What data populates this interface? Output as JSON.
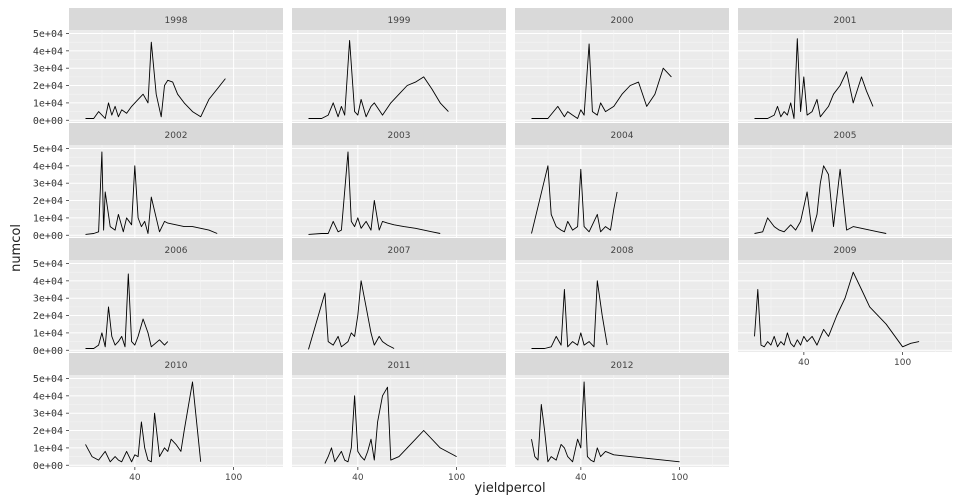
{
  "chart_data": {
    "type": "line",
    "xlabel": "yieldpercol",
    "ylabel": "numcol",
    "ylim": [
      -1000,
      52000
    ],
    "yticks": [
      0,
      10000,
      20000,
      30000,
      40000,
      50000
    ],
    "ytick_labels": [
      "0e+00",
      "1e+04",
      "2e+04",
      "3e+04",
      "4e+04",
      "5e+04"
    ],
    "xticks": [
      40,
      100
    ],
    "xtick_labels": [
      "40",
      "100"
    ],
    "grid": true,
    "facets": [
      {
        "strip": "1998",
        "x": [
          10,
          15,
          18,
          22,
          24,
          26,
          28,
          30,
          32,
          35,
          38,
          42,
          45,
          48,
          50,
          53,
          56,
          58,
          60,
          63,
          66,
          70,
          75,
          80,
          85,
          90,
          95
        ],
        "values": [
          1000,
          1000,
          5000,
          1000,
          10000,
          3000,
          8000,
          2000,
          6000,
          4000,
          8000,
          12000,
          15000,
          10000,
          45000,
          15000,
          2000,
          20000,
          23000,
          22000,
          15000,
          10000,
          5000,
          2000,
          12000,
          18000,
          24000
        ]
      },
      {
        "strip": "1999",
        "x": [
          10,
          18,
          22,
          25,
          28,
          30,
          32,
          35,
          38,
          40,
          42,
          45,
          48,
          50,
          55,
          60,
          65,
          70,
          75,
          80,
          85,
          90,
          95
        ],
        "values": [
          1000,
          1000,
          3000,
          10000,
          2000,
          8000,
          3000,
          46000,
          5000,
          3000,
          12000,
          2000,
          8000,
          10000,
          3000,
          10000,
          15000,
          20000,
          22000,
          25000,
          18000,
          10000,
          5000
        ]
      },
      {
        "strip": "2000",
        "x": [
          10,
          20,
          26,
          30,
          32,
          35,
          38,
          40,
          42,
          45,
          47,
          50,
          52,
          55,
          60,
          65,
          70,
          75,
          80,
          85,
          90,
          95
        ],
        "values": [
          1000,
          1000,
          8000,
          2000,
          5000,
          3000,
          1000,
          6000,
          3000,
          44000,
          5000,
          3000,
          10000,
          5000,
          8000,
          15000,
          20000,
          22000,
          8000,
          15000,
          30000,
          25000
        ]
      },
      {
        "strip": "2001",
        "x": [
          10,
          18,
          22,
          24,
          26,
          28,
          30,
          32,
          34,
          36,
          38,
          40,
          42,
          45,
          48,
          50,
          55,
          58,
          62,
          66,
          70,
          75,
          78,
          82
        ],
        "values": [
          1000,
          1000,
          3000,
          8000,
          2000,
          5000,
          3000,
          10000,
          1000,
          47000,
          5000,
          25000,
          3000,
          5000,
          12000,
          2000,
          8000,
          15000,
          20000,
          28000,
          10000,
          25000,
          17000,
          8000
        ]
      },
      {
        "strip": "2002",
        "x": [
          10,
          15,
          18,
          20,
          21,
          22,
          25,
          28,
          30,
          33,
          35,
          38,
          40,
          42,
          44,
          46,
          48,
          50,
          55,
          58,
          60,
          65,
          70,
          75,
          80,
          85,
          90
        ],
        "values": [
          500,
          1000,
          2000,
          48000,
          3000,
          25000,
          5000,
          3000,
          12000,
          2000,
          10000,
          6000,
          40000,
          10000,
          5000,
          8000,
          1000,
          22000,
          2000,
          8000,
          7000,
          6000,
          5000,
          5000,
          4000,
          3000,
          1000
        ]
      },
      {
        "strip": "2003",
        "x": [
          10,
          18,
          22,
          25,
          28,
          30,
          34,
          36,
          38,
          40,
          42,
          45,
          48,
          50,
          53,
          55,
          58,
          62,
          68,
          75,
          80,
          85,
          90
        ],
        "values": [
          500,
          1000,
          1000,
          8000,
          2000,
          3000,
          48000,
          8000,
          5000,
          10000,
          4000,
          8000,
          3000,
          20000,
          3000,
          8000,
          7000,
          6000,
          5000,
          4000,
          3000,
          2000,
          1000
        ]
      },
      {
        "strip": "2004",
        "x": [
          10,
          20,
          22,
          25,
          28,
          30,
          32,
          35,
          38,
          40,
          42,
          45,
          48,
          50,
          52,
          55,
          58,
          60,
          62
        ],
        "values": [
          1000,
          40000,
          12000,
          5000,
          3000,
          2000,
          8000,
          3000,
          5000,
          38000,
          5000,
          2000,
          8000,
          12000,
          2000,
          5000,
          3000,
          15000,
          25000
        ]
      },
      {
        "strip": "2005",
        "x": [
          10,
          15,
          18,
          22,
          25,
          28,
          32,
          35,
          38,
          42,
          45,
          48,
          50,
          52,
          55,
          58,
          62,
          66,
          70,
          75,
          80,
          85,
          90
        ],
        "values": [
          1000,
          2000,
          10000,
          5000,
          3000,
          2000,
          6000,
          3000,
          8000,
          25000,
          2000,
          12000,
          30000,
          40000,
          35000,
          5000,
          38000,
          3000,
          5000,
          4000,
          3000,
          2000,
          1000
        ]
      },
      {
        "strip": "2006",
        "x": [
          10,
          15,
          18,
          20,
          22,
          24,
          26,
          28,
          30,
          32,
          34,
          36,
          38,
          40,
          42,
          45,
          48,
          50,
          55,
          58,
          60
        ],
        "values": [
          1000,
          1000,
          3000,
          10000,
          2000,
          25000,
          8000,
          3000,
          5000,
          8000,
          2000,
          44000,
          5000,
          3000,
          8000,
          18000,
          10000,
          2000,
          6000,
          3000,
          5000
        ]
      },
      {
        "strip": "2007",
        "x": [
          10,
          20,
          22,
          25,
          28,
          30,
          34,
          36,
          38,
          40,
          42,
          45,
          48,
          50,
          53,
          55,
          58,
          62
        ],
        "values": [
          500,
          33000,
          5000,
          3000,
          8000,
          2000,
          5000,
          10000,
          8000,
          20000,
          40000,
          25000,
          10000,
          3000,
          8000,
          5000,
          3000,
          1000
        ]
      },
      {
        "strip": "2008",
        "x": [
          10,
          18,
          22,
          25,
          28,
          30,
          32,
          35,
          38,
          40,
          42,
          45,
          48,
          50,
          53,
          56
        ],
        "values": [
          1000,
          1000,
          2000,
          8000,
          3000,
          35000,
          2000,
          5000,
          3000,
          10000,
          3000,
          5000,
          2000,
          40000,
          20000,
          3000
        ]
      },
      {
        "strip": "2009",
        "x": [
          10,
          12,
          14,
          16,
          18,
          20,
          22,
          24,
          26,
          28,
          30,
          32,
          34,
          36,
          38,
          40,
          42,
          45,
          48,
          52,
          55,
          60,
          65,
          70,
          75,
          80,
          90,
          100,
          105,
          110
        ],
        "values": [
          8000,
          35000,
          3000,
          2000,
          5000,
          3000,
          8000,
          2000,
          5000,
          3000,
          10000,
          4000,
          2000,
          6000,
          3000,
          8000,
          5000,
          8000,
          3000,
          12000,
          8000,
          20000,
          30000,
          45000,
          35000,
          25000,
          15000,
          2000,
          4000,
          5000
        ]
      },
      {
        "strip": "2010",
        "x": [
          10,
          14,
          18,
          22,
          25,
          28,
          30,
          32,
          35,
          38,
          40,
          42,
          44,
          46,
          48,
          50,
          52,
          55,
          58,
          60,
          62,
          65,
          68,
          70,
          75,
          80
        ],
        "values": [
          12000,
          5000,
          3000,
          8000,
          2000,
          5000,
          3000,
          2000,
          8000,
          2000,
          6000,
          5000,
          25000,
          10000,
          3000,
          2000,
          30000,
          5000,
          10000,
          8000,
          15000,
          12000,
          8000,
          20000,
          48000,
          2000
        ]
      },
      {
        "strip": "2011",
        "x": [
          20,
          22,
          24,
          26,
          28,
          30,
          32,
          34,
          36,
          38,
          40,
          42,
          44,
          46,
          48,
          50,
          52,
          55,
          58,
          60,
          65,
          70,
          75,
          80,
          90,
          100
        ],
        "values": [
          1000,
          5000,
          10000,
          2000,
          5000,
          8000,
          3000,
          2000,
          10000,
          40000,
          8000,
          5000,
          3000,
          8000,
          15000,
          3000,
          25000,
          40000,
          45000,
          3000,
          5000,
          10000,
          15000,
          20000,
          10000,
          5000
        ]
      },
      {
        "strip": "2012",
        "x": [
          10,
          12,
          14,
          16,
          18,
          20,
          22,
          25,
          28,
          30,
          32,
          35,
          38,
          40,
          42,
          44,
          46,
          48,
          50,
          52,
          55,
          60,
          70,
          80,
          90,
          100
        ],
        "values": [
          15000,
          5000,
          3000,
          35000,
          20000,
          2000,
          5000,
          3000,
          12000,
          10000,
          5000,
          2000,
          15000,
          10000,
          48000,
          5000,
          3000,
          2000,
          10000,
          5000,
          8000,
          6000,
          5000,
          4000,
          3000,
          2000
        ]
      }
    ]
  }
}
